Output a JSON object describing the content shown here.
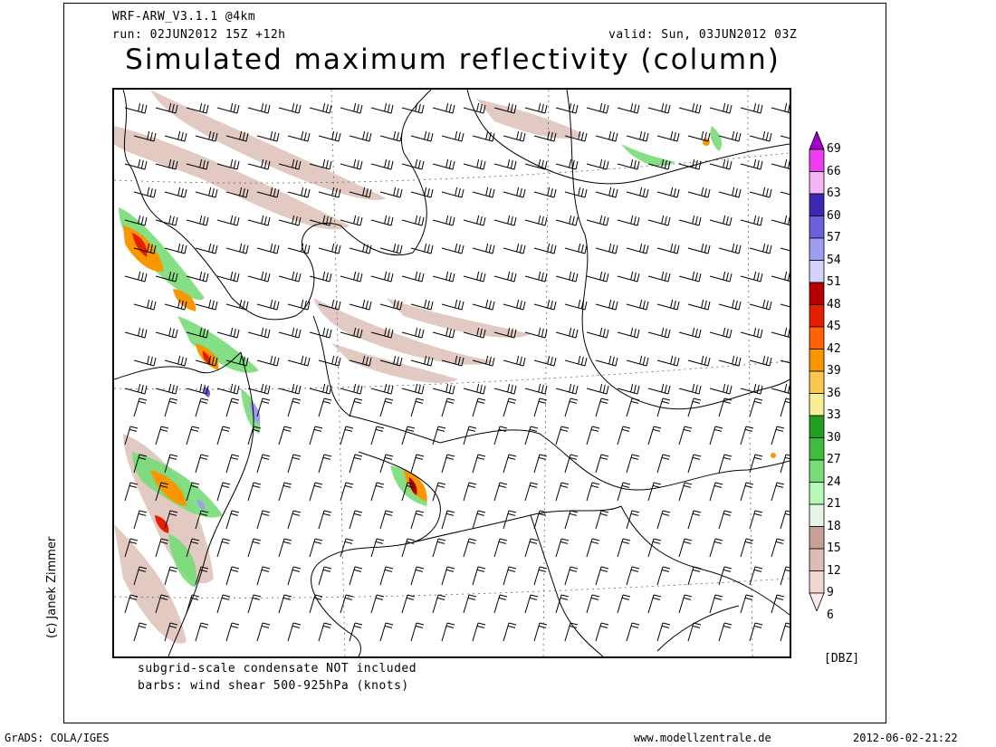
{
  "header": {
    "model": "WRF-ARW_V3.1.1 @4km",
    "run": "run: 02JUN2012 15Z +12h",
    "valid": "valid: Sun, 03JUN2012 03Z",
    "title": "Simulated maximum reflectivity (column)"
  },
  "notes": {
    "line1": "subgrid-scale condensate NOT included",
    "line2": "barbs: wind shear 500-925hPa (knots)"
  },
  "credit": "(c) Janek Zimmer",
  "colorbar": {
    "unit": "[DBZ]",
    "ticks": [
      "69",
      "66",
      "63",
      "60",
      "57",
      "54",
      "51",
      "48",
      "45",
      "42",
      "39",
      "36",
      "33",
      "30",
      "27",
      "24",
      "21",
      "18",
      "15",
      "12",
      "9",
      "6"
    ],
    "colors": [
      "#a000c8",
      "#f03cf0",
      "#f5b4f5",
      "#3c28b4",
      "#6c5fe0",
      "#9e9ef0",
      "#d2d2fa",
      "#b40000",
      "#e61e00",
      "#ff6400",
      "#fa9600",
      "#fac850",
      "#f5f096",
      "#1ea01e",
      "#3cbe3c",
      "#78dc78",
      "#b4fab4",
      "#e6f5e6",
      "#c8a096",
      "#dcbcb4",
      "#f0d8d0",
      "#faece6"
    ]
  },
  "footer": {
    "left": "GrADS: COLA/IGES",
    "center": "www.modellzentrale.de",
    "right": "2012-06-02-21:22"
  }
}
